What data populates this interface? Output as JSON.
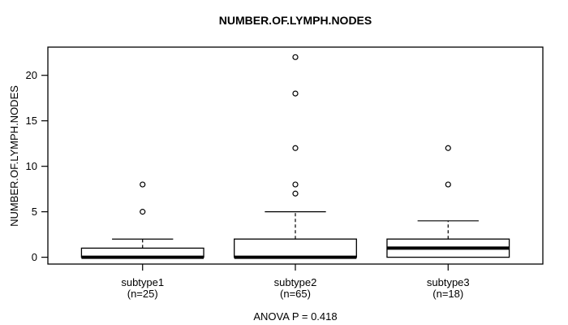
{
  "chart_data": {
    "type": "boxplot",
    "title": "NUMBER.OF.LYMPH.NODES",
    "ylabel": "NUMBER.OF.LYMPH.NODES",
    "xlabel": "",
    "annotation": "ANOVA P = 0.418",
    "ylim": [
      -0.75,
      23.1
    ],
    "yticks": [
      0,
      5,
      10,
      15,
      20
    ],
    "grid": false,
    "legend_position": "none",
    "colors": {
      "stroke": "#000000",
      "box_fill": "#ffffff",
      "background": "#ffffff"
    },
    "groups": [
      {
        "label": "subtype1",
        "sublabel": "(n=25)",
        "n": 25,
        "min": 0,
        "q1": 0,
        "median": 0,
        "q3": 1,
        "whisker_high": 2,
        "outliers": [
          5,
          8
        ]
      },
      {
        "label": "subtype2",
        "sublabel": "(n=65)",
        "n": 65,
        "min": 0,
        "q1": 0,
        "median": 0,
        "q3": 2,
        "whisker_high": 5,
        "outliers": [
          7,
          8,
          12,
          18,
          22
        ]
      },
      {
        "label": "subtype3",
        "sublabel": "(n=18)",
        "n": 18,
        "min": 0,
        "q1": 0,
        "median": 1,
        "q3": 2,
        "whisker_high": 4,
        "outliers": [
          8,
          12
        ]
      }
    ]
  }
}
